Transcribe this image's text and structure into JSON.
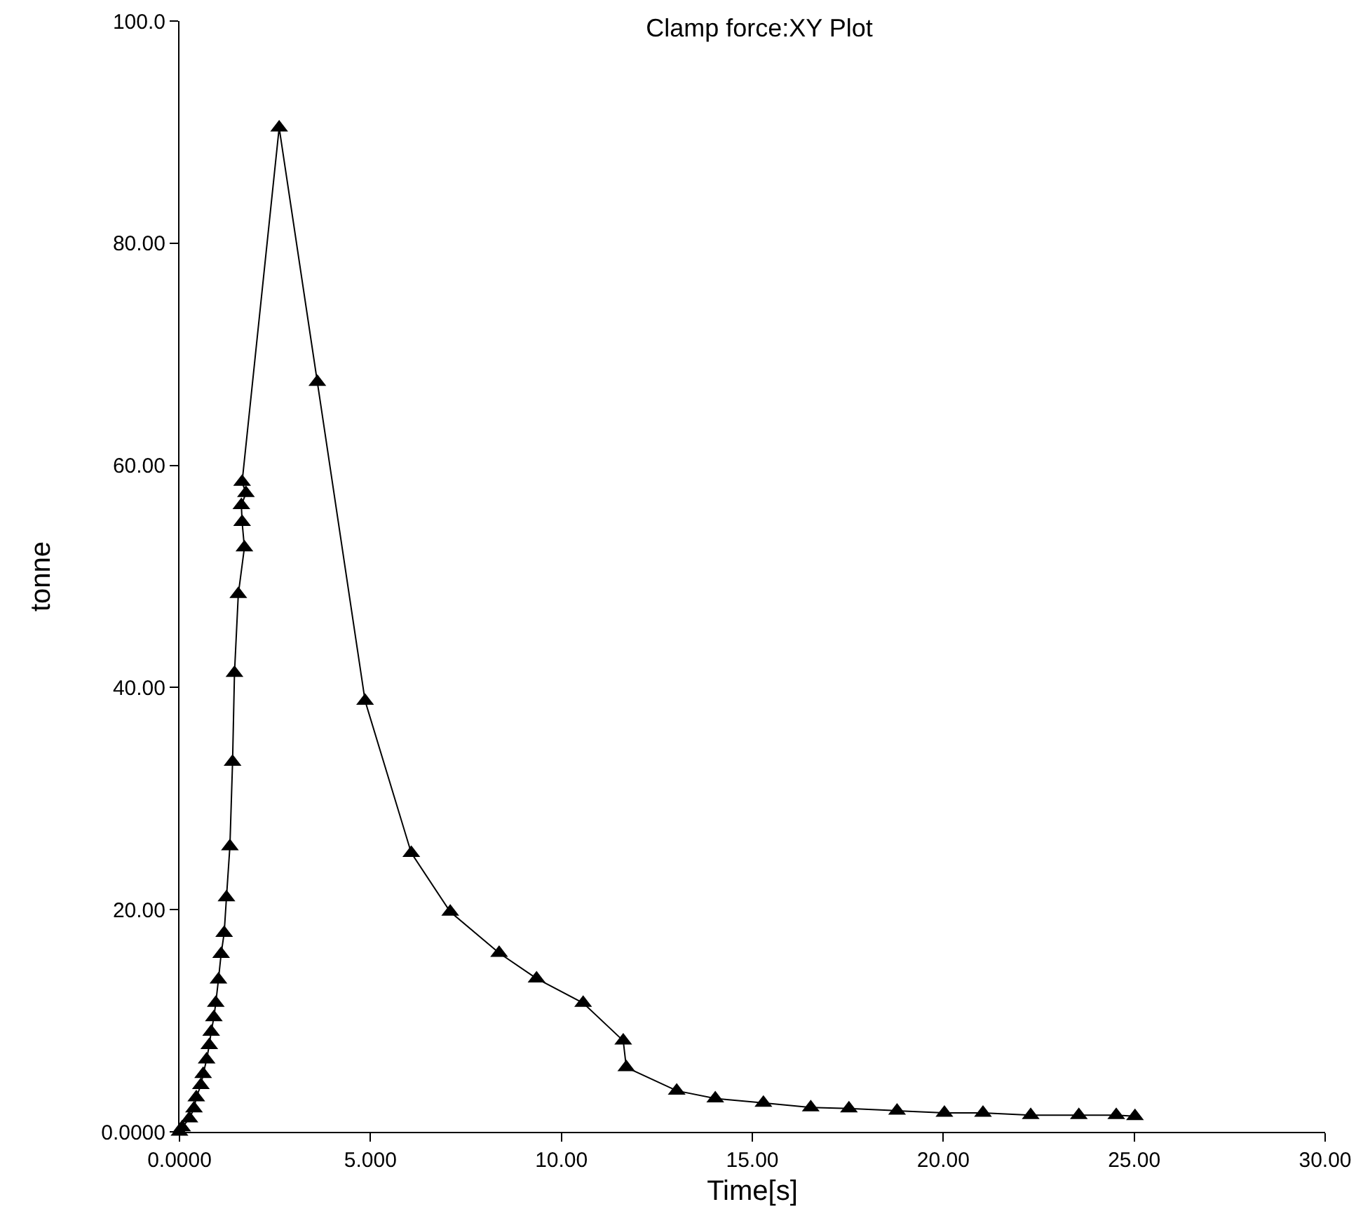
{
  "chart_data": {
    "type": "line",
    "title": "Clamp force:XY Plot",
    "xlabel": "Time[s]",
    "ylabel": "tonne",
    "x": [
      0,
      0.07,
      0.26,
      0.38,
      0.44,
      0.56,
      0.62,
      0.71,
      0.78,
      0.83,
      0.9,
      0.95,
      1.02,
      1.09,
      1.17,
      1.23,
      1.32,
      1.39,
      1.44,
      1.54,
      1.7,
      1.64,
      1.62,
      1.74,
      1.64,
      2.61,
      3.61,
      4.86,
      6.07,
      7.09,
      8.37,
      9.35,
      10.57,
      11.62,
      11.7,
      13.02,
      14.03,
      15.29,
      16.53,
      17.53,
      18.79,
      20.03,
      21.04,
      22.29,
      23.55,
      24.53,
      25.02
    ],
    "values": [
      0,
      0.4,
      1.2,
      2.1,
      3.1,
      4.2,
      5.2,
      6.5,
      7.8,
      9,
      10.3,
      11.6,
      13.7,
      16,
      17.9,
      21.1,
      25.7,
      33.3,
      41.3,
      48.4,
      52.6,
      54.9,
      56.4,
      57.5,
      58.5,
      90.4,
      67.5,
      38.8,
      25.1,
      19.8,
      16.1,
      13.8,
      11.6,
      8.2,
      5.8,
      3.7,
      3,
      2.6,
      2.2,
      2.1,
      1.9,
      1.7,
      1.7,
      1.5,
      1.5,
      1.5,
      1.4
    ],
    "color": "#000000",
    "marker": "triangle",
    "line_style": "solid",
    "grid": false,
    "legend": false,
    "xlim": [
      0,
      30
    ],
    "xticks": [
      {
        "value": 0,
        "label": "0.0000"
      },
      {
        "value": 5,
        "label": "5.000"
      },
      {
        "value": 10,
        "label": "10.00"
      },
      {
        "value": 15,
        "label": "15.00"
      },
      {
        "value": 20,
        "label": "20.00"
      },
      {
        "value": 25,
        "label": "25.00"
      },
      {
        "value": 30,
        "label": "30.00"
      }
    ],
    "ylim": [
      0,
      100
    ],
    "yticks": [
      {
        "value": 0,
        "label": "0.0000"
      },
      {
        "value": 20,
        "label": "20.00"
      },
      {
        "value": 40,
        "label": "40.00"
      },
      {
        "value": 60,
        "label": "60.00"
      },
      {
        "value": 80,
        "label": "80.00"
      },
      {
        "value": 100,
        "label": "100.0"
      }
    ]
  }
}
